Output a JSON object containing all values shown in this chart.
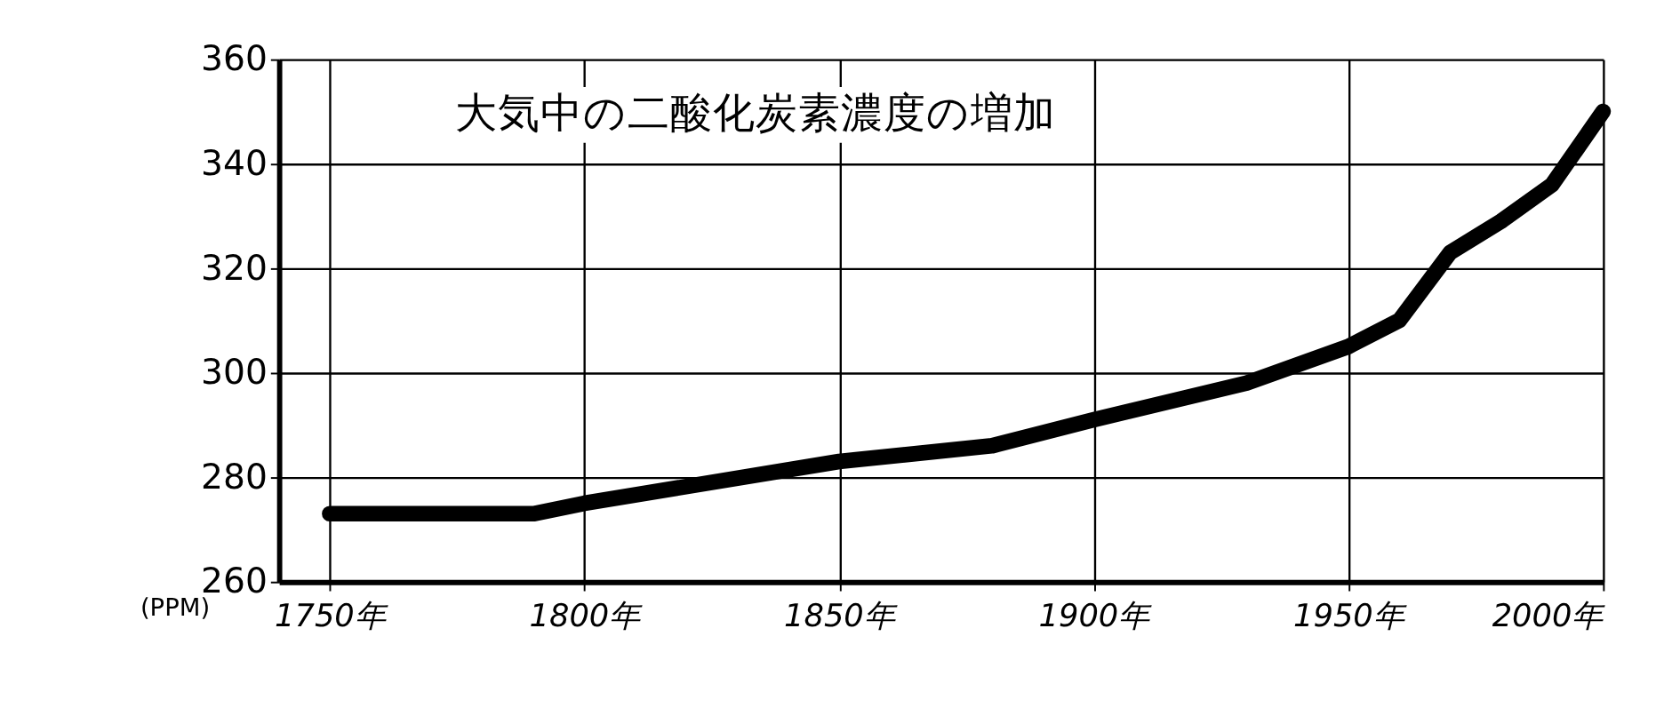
{
  "chart_data": {
    "type": "line",
    "title": "大気中の二酸化炭素濃度の増加",
    "ylabel": "(PPM)",
    "x": [
      1750,
      1790,
      1800,
      1850,
      1880,
      1900,
      1930,
      1950,
      1960,
      1970,
      1980,
      1990,
      2000
    ],
    "series": [
      {
        "color": "#000000",
        "values": [
          273,
          273,
          275,
          283,
          286,
          291,
          298,
          305,
          310,
          323,
          329,
          336,
          350
        ]
      }
    ],
    "xlim": [
      1740,
      2000
    ],
    "xticks": [
      {
        "value": 1750,
        "label": "1750年"
      },
      {
        "value": 1800,
        "label": "1800年"
      },
      {
        "value": 1850,
        "label": "1850年"
      },
      {
        "value": 1900,
        "label": "1900年"
      },
      {
        "value": 1950,
        "label": "1950年"
      },
      {
        "value": 2000,
        "label": "2000年"
      }
    ],
    "ylim": [
      260,
      360
    ],
    "yticks": [
      260,
      280,
      300,
      320,
      340,
      360
    ],
    "grid": true,
    "line_style": "solid"
  }
}
